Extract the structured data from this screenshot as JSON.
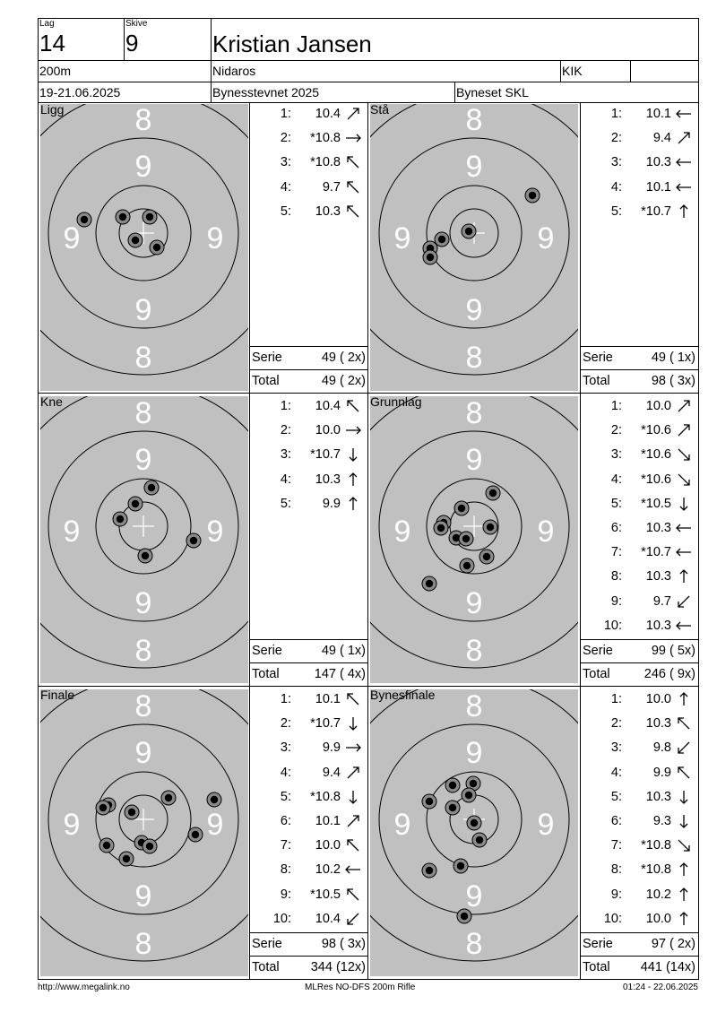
{
  "header": {
    "lag_label": "Lag",
    "lag_value": "14",
    "skive_label": "Skive",
    "skive_value": "9",
    "name": "Kristian Jansen",
    "distance": "200m",
    "club": "Nidaros",
    "club_code": "KIK",
    "date": "19-21.06.2025",
    "event": "Bynesstevnet 2025",
    "organizer": "Byneset SKL"
  },
  "ring_labels": {
    "outer": "8",
    "inner": "9"
  },
  "panels": [
    {
      "title": "Ligg",
      "hits": [
        [
          94,
          245
        ],
        [
          137,
          242
        ],
        [
          167,
          242
        ],
        [
          151,
          268
        ],
        [
          175,
          276
        ]
      ],
      "shots": [
        {
          "n": "1:",
          "v": "10.4",
          "dir": "NE"
        },
        {
          "n": "2:",
          "v": "*10.8",
          "dir": "E"
        },
        {
          "n": "3:",
          "v": "*10.8",
          "dir": "NW"
        },
        {
          "n": "4:",
          "v": "9.7",
          "dir": "NW"
        },
        {
          "n": "5:",
          "v": "10.3",
          "dir": "NW"
        }
      ],
      "serie_label": "Serie",
      "serie": "49 ( 2x)",
      "total_label": "Total",
      "total": "49 ( 2x)"
    },
    {
      "title": "Stå",
      "hits": [
        [
          594,
          218
        ],
        [
          523,
          258
        ],
        [
          493,
          267
        ],
        [
          480,
          277
        ],
        [
          480,
          287
        ]
      ],
      "shots": [
        {
          "n": "1:",
          "v": "10.1",
          "dir": "W"
        },
        {
          "n": "2:",
          "v": "9.4",
          "dir": "NE"
        },
        {
          "n": "3:",
          "v": "10.3",
          "dir": "W"
        },
        {
          "n": "4:",
          "v": "10.1",
          "dir": "W"
        },
        {
          "n": "5:",
          "v": "*10.7",
          "dir": "N"
        }
      ],
      "serie_label": "Serie",
      "serie": "49 ( 1x)",
      "total_label": "Total",
      "total": "98 ( 3x)"
    },
    {
      "title": "Kne",
      "hits": [
        [
          169,
          544
        ],
        [
          151,
          562
        ],
        [
          134,
          579
        ],
        [
          216,
          603
        ],
        [
          162,
          620
        ]
      ],
      "shots": [
        {
          "n": "1:",
          "v": "10.4",
          "dir": "NW"
        },
        {
          "n": "2:",
          "v": "10.0",
          "dir": "E"
        },
        {
          "n": "3:",
          "v": "*10.7",
          "dir": "S"
        },
        {
          "n": "4:",
          "v": "10.3",
          "dir": "N"
        },
        {
          "n": "5:",
          "v": "9.9",
          "dir": "N"
        }
      ],
      "serie_label": "Serie",
      "serie": "49 ( 1x)",
      "total_label": "Total",
      "total": "147 ( 4x)"
    },
    {
      "title": "Grunnlag",
      "hits": [
        [
          550,
          550
        ],
        [
          515,
          567
        ],
        [
          495,
          583
        ],
        [
          492,
          589
        ],
        [
          547,
          588
        ],
        [
          509,
          600
        ],
        [
          543,
          621
        ],
        [
          521,
          631
        ],
        [
          479,
          651
        ],
        [
          520,
          601
        ]
      ],
      "shots": [
        {
          "n": "1:",
          "v": "10.0",
          "dir": "NE"
        },
        {
          "n": "2:",
          "v": "*10.6",
          "dir": "NE"
        },
        {
          "n": "3:",
          "v": "*10.6",
          "dir": "SE"
        },
        {
          "n": "4:",
          "v": "*10.6",
          "dir": "SE"
        },
        {
          "n": "5:",
          "v": "*10.5",
          "dir": "S"
        },
        {
          "n": "6:",
          "v": "10.3",
          "dir": "W"
        },
        {
          "n": "7:",
          "v": "*10.7",
          "dir": "W"
        },
        {
          "n": "8:",
          "v": "10.3",
          "dir": "N"
        },
        {
          "n": "9:",
          "v": "9.7",
          "dir": "SW"
        },
        {
          "n": "10:",
          "v": "10.3",
          "dir": "W"
        }
      ],
      "serie_label": "Serie",
      "serie": "99 ( 5x)",
      "total_label": "Total",
      "total": "246 ( 9x)"
    },
    {
      "title": "Finale",
      "hits": [
        [
          188,
          890
        ],
        [
          239,
          892
        ],
        [
          121,
          898
        ],
        [
          115,
          901
        ],
        [
          147,
          906
        ],
        [
          218,
          931
        ],
        [
          119,
          943
        ],
        [
          158,
          940
        ],
        [
          167,
          944
        ],
        [
          141,
          958
        ]
      ],
      "shots": [
        {
          "n": "1:",
          "v": "10.1",
          "dir": "NW"
        },
        {
          "n": "2:",
          "v": "*10.7",
          "dir": "S"
        },
        {
          "n": "3:",
          "v": "9.9",
          "dir": "E"
        },
        {
          "n": "4:",
          "v": "9.4",
          "dir": "NE"
        },
        {
          "n": "5:",
          "v": "*10.8",
          "dir": "S"
        },
        {
          "n": "6:",
          "v": "10.1",
          "dir": "NE"
        },
        {
          "n": "7:",
          "v": "10.0",
          "dir": "NW"
        },
        {
          "n": "8:",
          "v": "10.2",
          "dir": "W"
        },
        {
          "n": "9:",
          "v": "*10.5",
          "dir": "NW"
        },
        {
          "n": "10:",
          "v": "10.4",
          "dir": "SW"
        }
      ],
      "serie_label": "Serie",
      "serie": "98 ( 3x)",
      "total_label": "Total",
      "total": "344 (12x)"
    },
    {
      "title": "Bynesfinale",
      "hits": [
        [
          528,
          874
        ],
        [
          505,
          876
        ],
        [
          523,
          887
        ],
        [
          479,
          894
        ],
        [
          505,
          901
        ],
        [
          529,
          918
        ],
        [
          535,
          937
        ],
        [
          479,
          971
        ],
        [
          514,
          966
        ],
        [
          518,
          1022
        ]
      ],
      "shots": [
        {
          "n": "1:",
          "v": "10.0",
          "dir": "N"
        },
        {
          "n": "2:",
          "v": "10.3",
          "dir": "NW"
        },
        {
          "n": "3:",
          "v": "9.8",
          "dir": "SW"
        },
        {
          "n": "4:",
          "v": "9.9",
          "dir": "NW"
        },
        {
          "n": "5:",
          "v": "10.3",
          "dir": "S"
        },
        {
          "n": "6:",
          "v": "9.3",
          "dir": "S"
        },
        {
          "n": "7:",
          "v": "*10.8",
          "dir": "SE"
        },
        {
          "n": "8:",
          "v": "*10.8",
          "dir": "N"
        },
        {
          "n": "9:",
          "v": "10.2",
          "dir": "N"
        },
        {
          "n": "10:",
          "v": "10.0",
          "dir": "N"
        }
      ],
      "serie_label": "Serie",
      "serie": "97 ( 2x)",
      "total_label": "Total",
      "total": "441 (14x)"
    }
  ],
  "footer": {
    "url": "http://www.megalink.no",
    "system": "MLRes NO-DFS 200m Rifle",
    "printed": "01:24 - 22.06.2025"
  }
}
